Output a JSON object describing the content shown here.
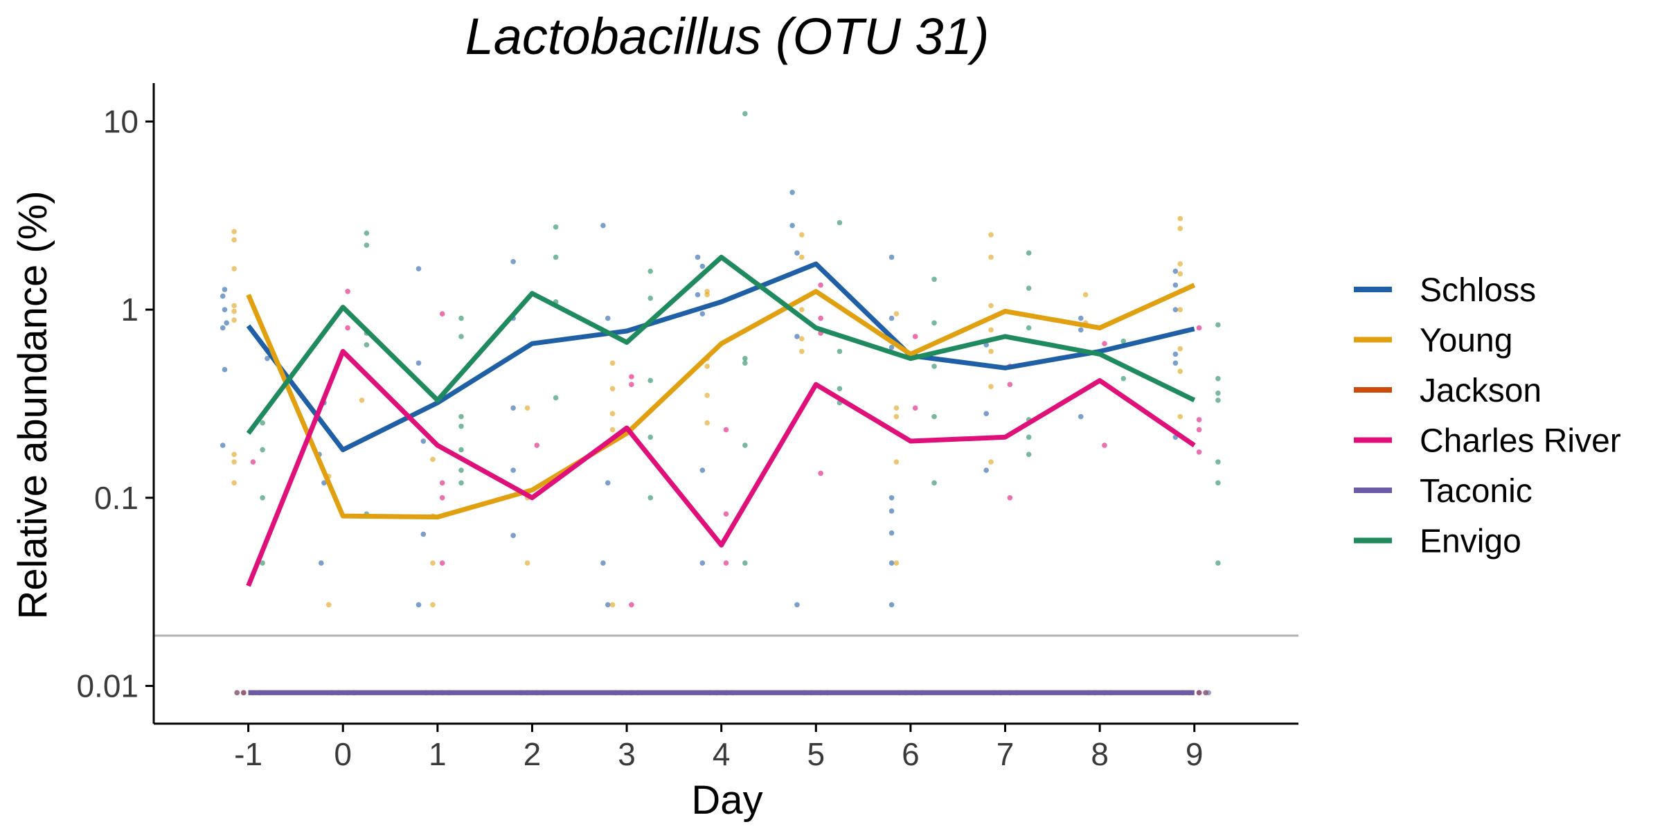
{
  "chart_data": {
    "type": "line",
    "title": "Lactobacillus (OTU 31)",
    "xlabel": "Day",
    "ylabel": "Relative abundance (%)",
    "x_ticks": [
      "-1",
      "0",
      "1",
      "2",
      "3",
      "4",
      "5",
      "6",
      "7",
      "8",
      "9"
    ],
    "y_scale": "log10",
    "y_ticks": [
      {
        "value": 0.01,
        "label": "0.01"
      },
      {
        "value": 0.1,
        "label": "0.1"
      },
      {
        "value": 1,
        "label": "1"
      },
      {
        "value": 10,
        "label": "10"
      }
    ],
    "ylim": [
      0.0063,
      16
    ],
    "xlim": [
      -2,
      10.1
    ],
    "detection_limit": 0.0185,
    "grid": false,
    "legend_position": "right",
    "x": [
      -1,
      0,
      1,
      2,
      3,
      4,
      5,
      6,
      7,
      8,
      9
    ],
    "series": [
      {
        "name": "Schloss",
        "color": "#1f5fa6",
        "values": [
          0.82,
          0.18,
          0.32,
          0.66,
          0.77,
          1.1,
          1.75,
          0.57,
          0.49,
          0.6,
          0.79
        ],
        "points": [
          [
            -1.25,
            1.28
          ],
          [
            -1.27,
            1.18
          ],
          [
            -1.25,
            1.0
          ],
          [
            -1.23,
            0.85
          ],
          [
            -1.27,
            0.8
          ],
          [
            -1.25,
            0.48
          ],
          [
            -1.27,
            0.19
          ],
          [
            -0.8,
            0.55
          ],
          [
            -0.2,
            0.32
          ],
          [
            -0.25,
            0.17
          ],
          [
            -0.23,
            0.045
          ],
          [
            -0.2,
            0.12
          ],
          [
            0.8,
            1.65
          ],
          [
            0.8,
            0.52
          ],
          [
            0.85,
            0.064
          ],
          [
            0.8,
            0.027
          ],
          [
            0.85,
            0.2
          ],
          [
            1.8,
            1.8
          ],
          [
            1.8,
            0.9
          ],
          [
            1.8,
            0.3
          ],
          [
            1.8,
            0.063
          ],
          [
            1.8,
            0.14
          ],
          [
            2.75,
            2.8
          ],
          [
            2.8,
            0.9
          ],
          [
            2.8,
            0.12
          ],
          [
            2.75,
            0.045
          ],
          [
            2.8,
            0.027
          ],
          [
            3.75,
            1.9
          ],
          [
            3.8,
            1.7
          ],
          [
            3.75,
            1.2
          ],
          [
            3.8,
            0.95
          ],
          [
            3.8,
            0.14
          ],
          [
            3.8,
            0.045
          ],
          [
            4.75,
            4.2
          ],
          [
            4.75,
            2.8
          ],
          [
            4.8,
            2.0
          ],
          [
            4.8,
            0.72
          ],
          [
            4.8,
            0.027
          ],
          [
            5.8,
            1.9
          ],
          [
            5.8,
            0.9
          ],
          [
            5.8,
            0.63
          ],
          [
            5.8,
            0.1
          ],
          [
            5.8,
            0.085
          ],
          [
            5.8,
            0.065
          ],
          [
            5.8,
            0.045
          ],
          [
            5.8,
            0.027
          ],
          [
            6.8,
            0.28
          ],
          [
            6.8,
            0.65
          ],
          [
            6.8,
            0.14
          ],
          [
            7.8,
            0.9
          ],
          [
            7.8,
            0.78
          ],
          [
            7.8,
            0.27
          ],
          [
            8.8,
            1.6
          ],
          [
            8.8,
            1.35
          ],
          [
            8.8,
            1.0
          ],
          [
            8.8,
            0.58
          ],
          [
            8.8,
            0.52
          ],
          [
            8.8,
            0.21
          ]
        ]
      },
      {
        "name": "Young",
        "color": "#e0a010",
        "values": [
          1.2,
          0.08,
          0.079,
          0.11,
          0.22,
          0.66,
          1.25,
          0.58,
          0.98,
          0.8,
          1.35
        ],
        "points": [
          [
            -1.15,
            2.6
          ],
          [
            -1.15,
            2.35
          ],
          [
            -1.15,
            1.65
          ],
          [
            -1.15,
            1.05
          ],
          [
            -1.15,
            0.98
          ],
          [
            -1.15,
            0.88
          ],
          [
            -1.15,
            0.17
          ],
          [
            -1.15,
            0.155
          ],
          [
            -1.15,
            0.12
          ],
          [
            0.2,
            0.33
          ],
          [
            -0.15,
            0.027
          ],
          [
            -0.15,
            0.13
          ],
          [
            0.95,
            0.2
          ],
          [
            0.95,
            0.16
          ],
          [
            0.95,
            0.027
          ],
          [
            0.95,
            0.045
          ],
          [
            0.95,
            0.08
          ],
          [
            1.95,
            0.3
          ],
          [
            1.95,
            0.1
          ],
          [
            1.95,
            0.045
          ],
          [
            2.85,
            0.52
          ],
          [
            2.85,
            0.38
          ],
          [
            2.85,
            0.28
          ],
          [
            2.85,
            0.23
          ],
          [
            2.85,
            0.027
          ],
          [
            3.85,
            1.25
          ],
          [
            3.85,
            1.2
          ],
          [
            3.85,
            0.55
          ],
          [
            3.85,
            0.5
          ],
          [
            3.85,
            0.35
          ],
          [
            3.85,
            0.25
          ],
          [
            4.85,
            2.5
          ],
          [
            4.85,
            1.9
          ],
          [
            4.85,
            1.0
          ],
          [
            4.85,
            0.7
          ],
          [
            4.85,
            0.6
          ],
          [
            5.85,
            0.95
          ],
          [
            5.85,
            0.3
          ],
          [
            5.85,
            0.27
          ],
          [
            5.85,
            0.155
          ],
          [
            5.85,
            0.045
          ],
          [
            6.85,
            2.5
          ],
          [
            6.85,
            1.9
          ],
          [
            6.85,
            1.05
          ],
          [
            6.85,
            0.78
          ],
          [
            6.85,
            0.6
          ],
          [
            6.85,
            0.39
          ],
          [
            6.85,
            0.155
          ],
          [
            7.85,
            1.2
          ],
          [
            7.85,
            0.85
          ],
          [
            8.85,
            3.05
          ],
          [
            8.85,
            2.7
          ],
          [
            8.85,
            1.75
          ],
          [
            8.85,
            1.55
          ],
          [
            8.85,
            1.25
          ],
          [
            8.85,
            1.0
          ],
          [
            8.85,
            0.62
          ],
          [
            8.85,
            0.47
          ],
          [
            8.85,
            0.27
          ]
        ]
      },
      {
        "name": "Jackson",
        "color": "#cc4a0a",
        "values": [
          0.0092,
          0.0092,
          0.0092,
          0.0092,
          0.0092,
          0.0092,
          0.0092,
          0.0092,
          0.0092,
          0.0092,
          0.0092
        ],
        "points": [
          [
            -1.05,
            0.0092
          ]
        ]
      },
      {
        "name": "Charles River",
        "color": "#e0107a",
        "values": [
          0.034,
          0.6,
          0.19,
          0.1,
          0.235,
          0.056,
          0.4,
          0.2,
          0.21,
          0.42,
          0.19
        ],
        "points": [
          [
            -0.95,
            0.155
          ],
          [
            0.05,
            1.25
          ],
          [
            0.05,
            0.8
          ],
          [
            1.05,
            0.95
          ],
          [
            1.05,
            0.35
          ],
          [
            1.05,
            0.12
          ],
          [
            1.05,
            0.1
          ],
          [
            1.05,
            0.045
          ],
          [
            2.05,
            0.19
          ],
          [
            3.05,
            0.44
          ],
          [
            3.05,
            0.4
          ],
          [
            3.05,
            0.027
          ],
          [
            4.05,
            0.23
          ],
          [
            4.05,
            0.082
          ],
          [
            4.05,
            0.045
          ],
          [
            5.05,
            1.35
          ],
          [
            5.05,
            0.9
          ],
          [
            5.05,
            0.75
          ],
          [
            5.05,
            0.135
          ],
          [
            6.05,
            0.72
          ],
          [
            6.05,
            0.3
          ],
          [
            7.05,
            0.5
          ],
          [
            7.05,
            0.4
          ],
          [
            7.05,
            0.1
          ],
          [
            8.05,
            0.66
          ],
          [
            8.05,
            0.19
          ],
          [
            9.05,
            0.8
          ],
          [
            9.05,
            0.26
          ],
          [
            9.05,
            0.23
          ],
          [
            9.05,
            0.175
          ],
          [
            9.05,
            0.0092
          ]
        ]
      },
      {
        "name": "Taconic",
        "color": "#6b5aa6",
        "values": [
          0.0092,
          0.0092,
          0.0092,
          0.0092,
          0.0092,
          0.0092,
          0.0092,
          0.0092,
          0.0092,
          0.0092,
          0.0092
        ],
        "points": [
          [
            9.15,
            0.0092
          ]
        ]
      },
      {
        "name": "Envigo",
        "color": "#1e8a5e",
        "values": [
          0.22,
          1.03,
          0.33,
          1.22,
          0.67,
          1.9,
          0.8,
          0.55,
          0.72,
          0.58,
          0.33
        ],
        "points": [
          [
            -0.85,
            0.25
          ],
          [
            -0.85,
            0.18
          ],
          [
            -0.85,
            0.1
          ],
          [
            -0.85,
            0.045
          ],
          [
            0.25,
            2.55
          ],
          [
            0.25,
            2.2
          ],
          [
            0.25,
            0.75
          ],
          [
            0.25,
            0.65
          ],
          [
            0.25,
            0.082
          ],
          [
            1.25,
            0.9
          ],
          [
            1.25,
            0.72
          ],
          [
            1.25,
            0.27
          ],
          [
            1.25,
            0.24
          ],
          [
            1.25,
            0.18
          ],
          [
            1.25,
            0.14
          ],
          [
            1.25,
            0.12
          ],
          [
            2.25,
            2.75
          ],
          [
            2.25,
            1.9
          ],
          [
            2.25,
            1.1
          ],
          [
            2.25,
            0.34
          ],
          [
            3.25,
            1.6
          ],
          [
            3.25,
            1.15
          ],
          [
            3.25,
            0.42
          ],
          [
            3.25,
            0.21
          ],
          [
            3.25,
            0.1
          ],
          [
            4.25,
            11.0
          ],
          [
            4.25,
            0.55
          ],
          [
            4.25,
            0.52
          ],
          [
            4.25,
            0.19
          ],
          [
            4.25,
            0.045
          ],
          [
            5.25,
            2.9
          ],
          [
            5.25,
            0.6
          ],
          [
            5.25,
            0.38
          ],
          [
            5.25,
            0.32
          ],
          [
            6.25,
            1.45
          ],
          [
            6.25,
            0.85
          ],
          [
            6.25,
            0.5
          ],
          [
            6.25,
            0.27
          ],
          [
            6.25,
            0.12
          ],
          [
            7.25,
            2.0
          ],
          [
            7.25,
            1.3
          ],
          [
            7.25,
            0.8
          ],
          [
            7.25,
            0.26
          ],
          [
            7.25,
            0.21
          ],
          [
            7.25,
            0.17
          ],
          [
            8.25,
            0.68
          ],
          [
            8.25,
            0.43
          ],
          [
            9.25,
            0.83
          ],
          [
            9.25,
            0.43
          ],
          [
            9.25,
            0.36
          ],
          [
            9.25,
            0.33
          ],
          [
            9.25,
            0.155
          ],
          [
            9.25,
            0.12
          ],
          [
            9.25,
            0.045
          ]
        ]
      }
    ]
  }
}
